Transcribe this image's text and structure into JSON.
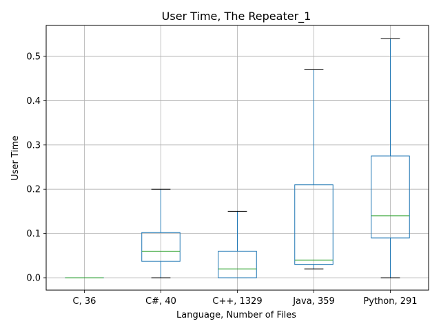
{
  "chart_data": {
    "type": "box",
    "title": "User Time, The Repeater_1",
    "xlabel": "Language, Number of Files",
    "ylabel": "User Time",
    "ylim": [
      -0.028,
      0.57
    ],
    "yticks": [
      0.0,
      0.1,
      0.2,
      0.3,
      0.4,
      0.5
    ],
    "ytick_labels": [
      "0.0",
      "0.1",
      "0.2",
      "0.3",
      "0.4",
      "0.5"
    ],
    "grid": true,
    "colors": {
      "box": "#1f77b4",
      "median": "#2ca02c",
      "cap": "#000000",
      "grid": "#b0b0b0"
    },
    "categories": [
      "C, 36",
      "C#, 40",
      "C++, 1329",
      "Java, 359",
      "Python, 291"
    ],
    "boxes": [
      {
        "whisker_low": 0.0,
        "q1": 0.0,
        "median": 0.0,
        "q3": 0.0,
        "whisker_high": 0.0
      },
      {
        "whisker_low": 0.0,
        "q1": 0.037,
        "median": 0.06,
        "q3": 0.102,
        "whisker_high": 0.2
      },
      {
        "whisker_low": 0.0,
        "q1": 0.0,
        "median": 0.02,
        "q3": 0.06,
        "whisker_high": 0.15
      },
      {
        "whisker_low": 0.02,
        "q1": 0.03,
        "median": 0.04,
        "q3": 0.21,
        "whisker_high": 0.47
      },
      {
        "whisker_low": 0.0,
        "q1": 0.09,
        "median": 0.14,
        "q3": 0.275,
        "whisker_high": 0.54
      }
    ]
  }
}
